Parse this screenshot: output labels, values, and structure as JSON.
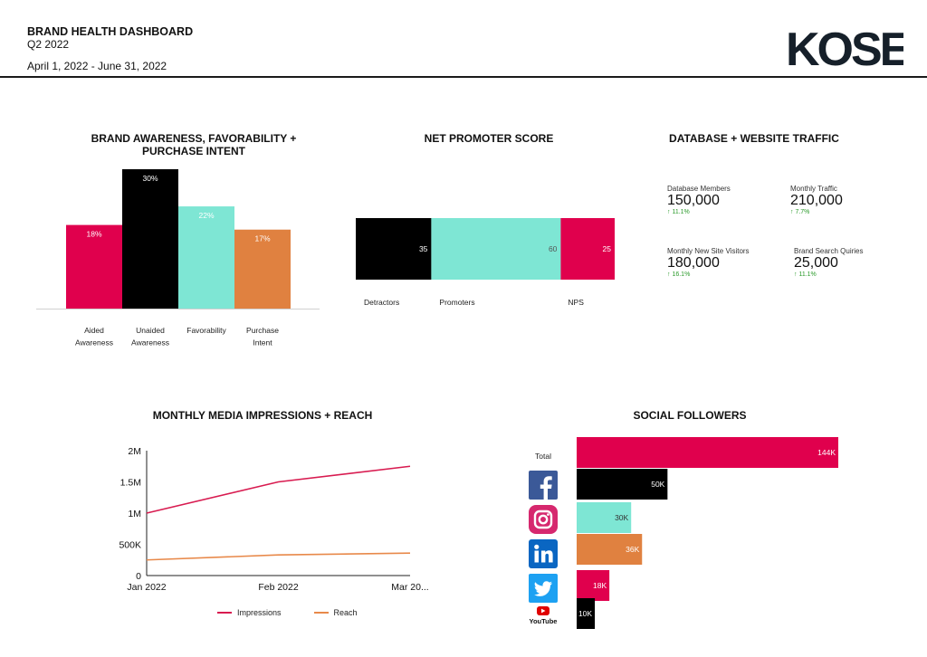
{
  "header": {
    "title": "BRAND HEALTH DASHBOARD",
    "quarter": "Q2 2022",
    "date_range": "April 1, 2022 - June 31, 2022",
    "logo_text": "KOSE"
  },
  "colors": {
    "red": "#e0004d",
    "black": "#000000",
    "teal": "#7ee6d4",
    "orange": "#e08140",
    "line_red": "#d81b50",
    "line_orange": "#e8894a"
  },
  "panels": {
    "awareness_title": "BRAND AWARENESS, FAVORABILITY + PURCHASE INTENT",
    "nps_title": "NET PROMOTER SCORE",
    "traffic_title": "DATABASE + WEBSITE TRAFFIC",
    "media_title": "MONTHLY MEDIA IMPRESSIONS + REACH",
    "social_title": "SOCIAL FOLLOWERS"
  },
  "kpis": [
    {
      "label": "Database Members",
      "value": "150,000",
      "delta": "↑ 11.1%"
    },
    {
      "label": "Monthly Traffic",
      "value": "210,000",
      "delta": "↑ 7.7%"
    },
    {
      "label": "Monthly New Site Visitors",
      "value": "180,000",
      "delta": "↑ 16.1%"
    },
    {
      "label": "Brand Search Quiries",
      "value": "25,000",
      "delta": "↑ 11.1%"
    }
  ],
  "chart_data": [
    {
      "id": "awareness",
      "type": "bar",
      "title": "BRAND AWARENESS, FAVORABILITY + PURCHASE INTENT",
      "categories": [
        [
          "Aided",
          "Awareness"
        ],
        [
          "Unaided",
          "Awareness"
        ],
        [
          "Favorability"
        ],
        [
          "Purchase",
          "Intent"
        ]
      ],
      "values": [
        18,
        30,
        22,
        17
      ],
      "labels": [
        "18%",
        "30%",
        "22%",
        "17%"
      ],
      "colors": [
        "#e0004d",
        "#000000",
        "#7ee6d4",
        "#e08140"
      ],
      "ylim": [
        0,
        30
      ],
      "grid": false
    },
    {
      "id": "nps",
      "type": "bar",
      "orientation": "horizontal-stacked",
      "title": "NET PROMOTER SCORE",
      "categories": [
        "Detractors",
        "Promoters",
        "NPS"
      ],
      "values": [
        35,
        60,
        25
      ],
      "colors": [
        "#000000",
        "#7ee6d4",
        "#e0004d"
      ]
    },
    {
      "id": "media",
      "type": "line",
      "title": "MONTHLY MEDIA IMPRESSIONS + REACH",
      "x": [
        "Jan 2022",
        "Feb 2022",
        "Mar 20..."
      ],
      "series": [
        {
          "name": "Impressions",
          "values": [
            1000000,
            1500000,
            1750000
          ],
          "color": "#d81b50"
        },
        {
          "name": "Reach",
          "values": [
            250000,
            330000,
            360000
          ],
          "color": "#e8894a"
        }
      ],
      "yticks": [
        "0",
        "500K",
        "1M",
        "1.5M",
        "2M"
      ],
      "ylim": [
        0,
        2000000
      ],
      "legend": "bottom",
      "grid": false
    },
    {
      "id": "social",
      "type": "bar",
      "orientation": "horizontal",
      "title": "SOCIAL FOLLOWERS",
      "categories": [
        "Total",
        "facebook-icon",
        "instagram-icon",
        "linkedin-icon",
        "twitter-icon",
        "youtube-icon"
      ],
      "values": [
        144000,
        50000,
        30000,
        36000,
        18000,
        10000
      ],
      "labels": [
        "144K",
        "50K",
        "30K",
        "36K",
        "18K",
        "10K"
      ],
      "colors": [
        "#e0004d",
        "#000000",
        "#7ee6d4",
        "#e08140",
        "#e0004d",
        "#000000"
      ],
      "label_colors": [
        "#ffffff",
        "#ffffff",
        "#333333",
        "#ffffff",
        "#ffffff",
        "#ffffff"
      ],
      "xlim": [
        0,
        144000
      ]
    }
  ],
  "social_icons": {
    "youtube_text": "YouTube"
  }
}
